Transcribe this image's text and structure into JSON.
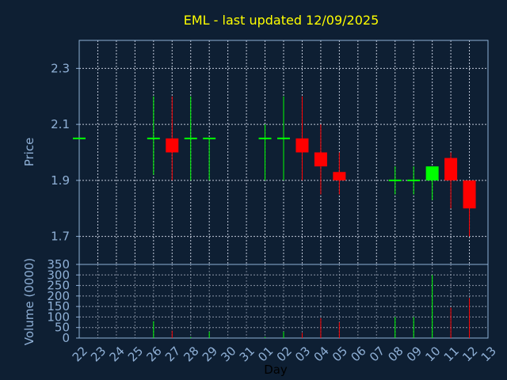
{
  "colors": {
    "background": "#0e1f33",
    "axis": "#8fb0d6",
    "grid": "#c0c8d8",
    "title": "#ffff00",
    "up": "#00ff00",
    "down": "#ff0000"
  },
  "chart_data": [
    {
      "type": "candlestick",
      "title": "EML - last updated 12/09/2025",
      "ylabel": "Price",
      "ylim": [
        1.6,
        2.4
      ],
      "yticks": [
        "1.7",
        "1.9",
        "2.1",
        "2.3"
      ],
      "grid": true,
      "categories": [
        "22",
        "23",
        "24",
        "25",
        "26",
        "27",
        "28",
        "29",
        "30",
        "31",
        "01",
        "02",
        "03",
        "04",
        "05",
        "06",
        "07",
        "08",
        "09",
        "10",
        "11",
        "12",
        "13"
      ],
      "candles": [
        {
          "x": "22",
          "open": 2.05,
          "high": 2.05,
          "low": 2.05,
          "close": 2.05
        },
        {
          "x": "26",
          "open": 2.05,
          "high": 2.2,
          "low": 1.92,
          "close": 2.05
        },
        {
          "x": "27",
          "open": 2.05,
          "high": 2.2,
          "low": 1.9,
          "close": 2.0
        },
        {
          "x": "28",
          "open": 2.05,
          "high": 2.2,
          "low": 1.9,
          "close": 2.05
        },
        {
          "x": "29",
          "open": 2.05,
          "high": 2.05,
          "low": 1.9,
          "close": 2.05
        },
        {
          "x": "01",
          "open": 2.05,
          "high": 2.1,
          "low": 1.9,
          "close": 2.05
        },
        {
          "x": "02",
          "open": 2.05,
          "high": 2.2,
          "low": 1.9,
          "close": 2.05
        },
        {
          "x": "03",
          "open": 2.05,
          "high": 2.2,
          "low": 1.9,
          "close": 2.0
        },
        {
          "x": "04",
          "open": 2.0,
          "high": 2.1,
          "low": 1.85,
          "close": 1.95
        },
        {
          "x": "05",
          "open": 1.93,
          "high": 2.0,
          "low": 1.85,
          "close": 1.9
        },
        {
          "x": "08",
          "open": 1.9,
          "high": 1.95,
          "low": 1.85,
          "close": 1.9
        },
        {
          "x": "09",
          "open": 1.9,
          "high": 1.95,
          "low": 1.85,
          "close": 1.9
        },
        {
          "x": "10",
          "open": 1.9,
          "high": 1.95,
          "low": 1.83,
          "close": 1.95
        },
        {
          "x": "11",
          "open": 1.98,
          "high": 2.0,
          "low": 1.8,
          "close": 1.9
        },
        {
          "x": "12",
          "open": 1.9,
          "high": 1.9,
          "low": 1.7,
          "close": 1.8
        }
      ]
    },
    {
      "type": "bar",
      "ylabel": "Volume (0000)",
      "xlabel": "Day",
      "ylim": [
        0,
        350
      ],
      "yticks": [
        "0",
        "50",
        "100",
        "150",
        "200",
        "250",
        "300",
        "350"
      ],
      "grid": true,
      "bars": [
        {
          "x": "26",
          "value": 80,
          "direction": "up"
        },
        {
          "x": "27",
          "value": 35,
          "direction": "down"
        },
        {
          "x": "28",
          "value": 5,
          "direction": "up"
        },
        {
          "x": "29",
          "value": 30,
          "direction": "up"
        },
        {
          "x": "01",
          "value": 5,
          "direction": "up"
        },
        {
          "x": "02",
          "value": 30,
          "direction": "up"
        },
        {
          "x": "03",
          "value": 25,
          "direction": "down"
        },
        {
          "x": "04",
          "value": 95,
          "direction": "down"
        },
        {
          "x": "05",
          "value": 75,
          "direction": "down"
        },
        {
          "x": "08",
          "value": 100,
          "direction": "up"
        },
        {
          "x": "09",
          "value": 100,
          "direction": "up"
        },
        {
          "x": "10",
          "value": 300,
          "direction": "up"
        },
        {
          "x": "11",
          "value": 145,
          "direction": "down"
        },
        {
          "x": "12",
          "value": 190,
          "direction": "down"
        }
      ]
    }
  ]
}
